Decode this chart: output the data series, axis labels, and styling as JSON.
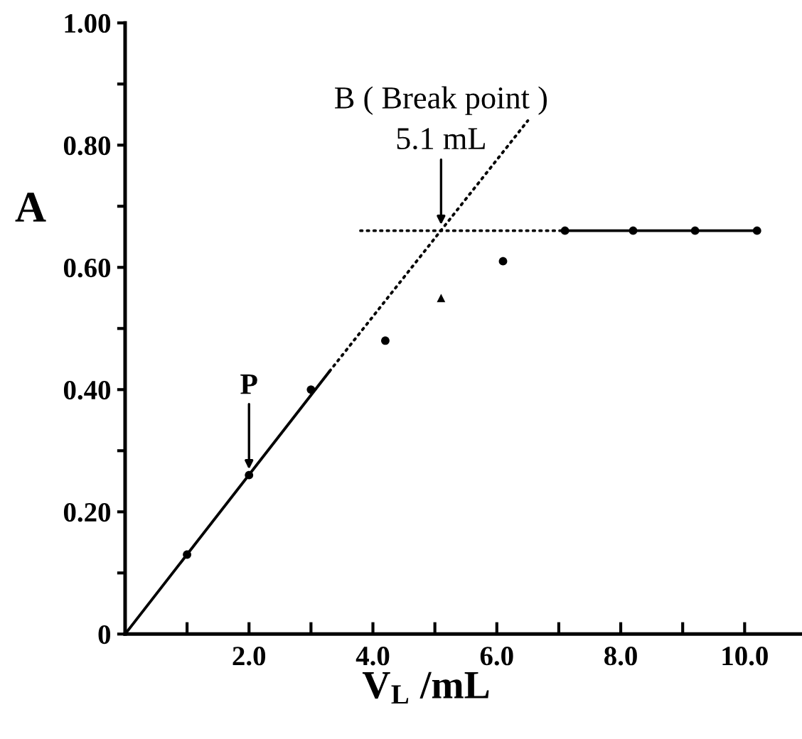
{
  "chart_data": {
    "type": "line",
    "xlabel": "V$_{L}$ /mL",
    "ylabel": "A",
    "xlim": [
      0,
      10.9
    ],
    "ylim": [
      0,
      1.0
    ],
    "xticks": [
      {
        "value": 1,
        "label": null
      },
      {
        "value": 2,
        "label": "2.0"
      },
      {
        "value": 3,
        "label": null
      },
      {
        "value": 4,
        "label": "4.0"
      },
      {
        "value": 5,
        "label": null
      },
      {
        "value": 6,
        "label": "6.0"
      },
      {
        "value": 7,
        "label": null
      },
      {
        "value": 8,
        "label": "8.0"
      },
      {
        "value": 9,
        "label": null
      },
      {
        "value": 10,
        "label": "10.0"
      }
    ],
    "yticks": [
      0,
      {
        "value": 0.1,
        "label": null
      },
      {
        "value": 0.2,
        "label": "0.20"
      },
      {
        "value": 0.3,
        "label": null
      },
      {
        "value": 0.4,
        "label": "0.40"
      },
      {
        "value": 0.5,
        "label": null
      },
      {
        "value": 0.6,
        "label": "0.60"
      },
      {
        "value": 0.7,
        "label": null
      },
      {
        "value": 0.8,
        "label": "0.80"
      },
      {
        "value": 0.9,
        "label": null
      },
      {
        "value": 1.0,
        "label": "1.00"
      }
    ],
    "series": [
      {
        "type": "line",
        "x": [
          0,
          3.3
        ],
        "values": [
          0,
          0.43
        ],
        "color": "#000000",
        "line_style": "solid",
        "marker": "none"
      },
      {
        "type": "line",
        "x": [
          3.3,
          6.5
        ],
        "values": [
          0.43,
          0.84
        ],
        "color": "#000000",
        "line_style": "dotted",
        "marker": "none"
      },
      {
        "type": "line",
        "x": [
          3.8,
          7.1
        ],
        "values": [
          0.66,
          0.66
        ],
        "color": "#000000",
        "line_style": "dotted",
        "marker": "none"
      },
      {
        "type": "line",
        "x": [
          7.1,
          10.2
        ],
        "values": [
          0.66,
          0.66
        ],
        "color": "#000000",
        "line_style": "solid",
        "marker": "none"
      },
      {
        "type": "scatter",
        "x": [
          1.0,
          2.0,
          3.0,
          4.2,
          6.1,
          7.1,
          8.2,
          9.2,
          10.2
        ],
        "values": [
          0.13,
          0.26,
          0.4,
          0.48,
          0.61,
          0.66,
          0.66,
          0.66,
          0.66
        ],
        "color": "#000000",
        "marker": "circle"
      },
      {
        "type": "scatter",
        "x": [
          5.1
        ],
        "values": [
          0.55
        ],
        "color": "#000000",
        "marker": "triangle"
      }
    ],
    "annotations": [
      {
        "text": "B ( Break point )\n5.1 mL",
        "x": 5.1,
        "y": 0.66
      },
      {
        "text": "P",
        "x": 2.0,
        "y": 0.26
      }
    ]
  }
}
